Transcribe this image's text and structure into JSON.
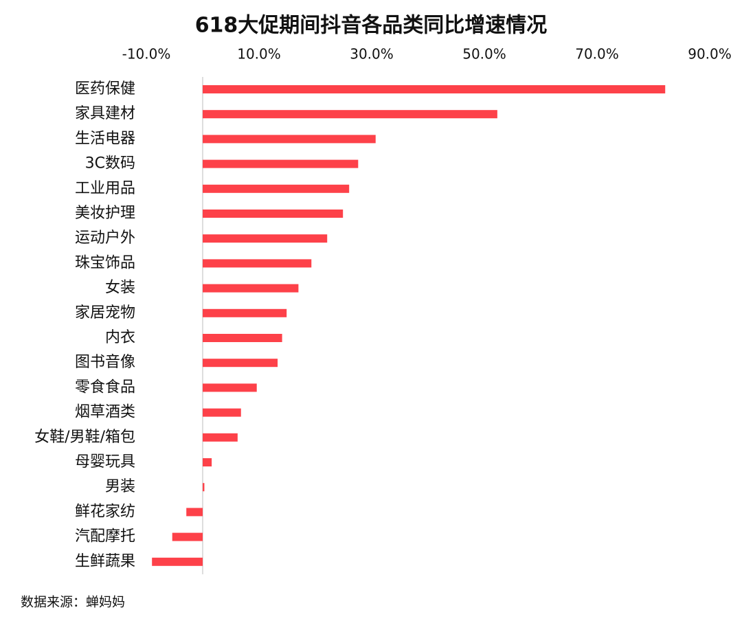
{
  "chart_data": {
    "type": "hbar",
    "title": "618大促期间抖音各品类同比增速情况",
    "source": "数据来源：蝉妈妈",
    "categories": [
      "医药保健",
      "家具建材",
      "生活电器",
      "3C数码",
      "工业用品",
      "美妆护理",
      "运动户外",
      "珠宝饰品",
      "女装",
      "家居宠物",
      "内衣",
      "图书音像",
      "零食食品",
      "烟草酒类",
      "女鞋/男鞋/箱包",
      "母婴玩具",
      "男装",
      "鲜花家纺",
      "汽配摩托",
      "生鲜蔬果"
    ],
    "values": [
      82.1,
      52.3,
      30.7,
      27.6,
      26.0,
      24.9,
      22.1,
      19.3,
      17.0,
      14.9,
      14.1,
      13.3,
      9.6,
      6.8,
      6.2,
      1.6,
      0.3,
      -2.9,
      -5.4,
      -9.0
    ],
    "color": "#fd4149",
    "xlim": [
      -10,
      90
    ],
    "xticks": [
      {
        "value": -10,
        "label": "-10.0%"
      },
      {
        "value": 10,
        "label": "10.0%"
      },
      {
        "value": 30,
        "label": "30.0%"
      },
      {
        "value": 50,
        "label": "50.0%"
      },
      {
        "value": 70,
        "label": "70.0%"
      },
      {
        "value": 90,
        "label": "90.0%"
      }
    ],
    "grid": false
  }
}
